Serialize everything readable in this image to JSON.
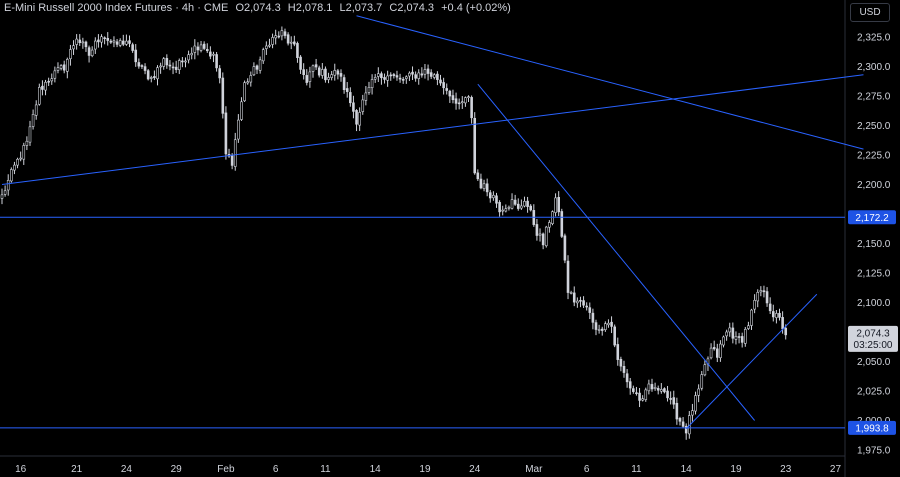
{
  "header": {
    "symbol": "E-Mini Russell 2000 Index Futures · 4h · CME",
    "open": "O2,074.3",
    "high": "H2,078.1",
    "low": "L2,073.7",
    "close": "C2,074.3",
    "change": "+0.4 (+0.02%)"
  },
  "currency_button": "USD",
  "colors": {
    "background": "#000000",
    "candle": "#d1d4dc",
    "trendline": "#2962ff",
    "level_label_bg": "#1e53e5",
    "price_label_bg": "#d1d4dc"
  },
  "chart_data": {
    "type": "candlestick",
    "ylim": [
      1968,
      2343
    ],
    "y_ticks": [
      "2,325.0",
      "2,300.0",
      "2,275.0",
      "2,250.0",
      "2,225.0",
      "2,200.0",
      "2,175.0",
      "2,150.0",
      "2,125.0",
      "2,100.0",
      "2,075.0",
      "2,050.0",
      "2,025.0",
      "2,000.0",
      "1,975.0"
    ],
    "x_ticks": [
      "16",
      "21",
      "24",
      "29",
      "Feb",
      "6",
      "11",
      "14",
      "19",
      "24",
      "Mar",
      "6",
      "11",
      "14",
      "19",
      "23",
      "27"
    ],
    "x_tick_index": [
      6,
      24,
      40,
      56,
      72,
      88,
      104,
      120,
      136,
      152,
      171,
      188,
      204,
      220,
      236,
      252,
      268
    ],
    "anchors": [
      [
        0,
        2190
      ],
      [
        4,
        2215
      ],
      [
        8,
        2235
      ],
      [
        12,
        2280
      ],
      [
        16,
        2292
      ],
      [
        20,
        2300
      ],
      [
        24,
        2325
      ],
      [
        28,
        2310
      ],
      [
        32,
        2328
      ],
      [
        36,
        2318
      ],
      [
        40,
        2322
      ],
      [
        44,
        2300
      ],
      [
        48,
        2290
      ],
      [
        52,
        2305
      ],
      [
        56,
        2298
      ],
      [
        60,
        2312
      ],
      [
        64,
        2320
      ],
      [
        68,
        2308
      ],
      [
        70,
        2290
      ],
      [
        72,
        2225
      ],
      [
        74,
        2220
      ],
      [
        76,
        2255
      ],
      [
        78,
        2285
      ],
      [
        82,
        2300
      ],
      [
        86,
        2322
      ],
      [
        90,
        2328
      ],
      [
        94,
        2315
      ],
      [
        98,
        2285
      ],
      [
        100,
        2300
      ],
      [
        104,
        2292
      ],
      [
        108,
        2295
      ],
      [
        112,
        2270
      ],
      [
        114,
        2255
      ],
      [
        116,
        2270
      ],
      [
        120,
        2290
      ],
      [
        124,
        2294
      ],
      [
        128,
        2288
      ],
      [
        132,
        2292
      ],
      [
        136,
        2296
      ],
      [
        140,
        2290
      ],
      [
        144,
        2278
      ],
      [
        146,
        2265
      ],
      [
        148,
        2270
      ],
      [
        150,
        2272
      ],
      [
        151,
        2258
      ],
      [
        152,
        2210
      ],
      [
        154,
        2200
      ],
      [
        158,
        2190
      ],
      [
        160,
        2180
      ],
      [
        164,
        2185
      ],
      [
        166,
        2178
      ],
      [
        168,
        2188
      ],
      [
        170,
        2175
      ],
      [
        172,
        2160
      ],
      [
        174,
        2150
      ],
      [
        176,
        2170
      ],
      [
        178,
        2188
      ],
      [
        180,
        2158
      ],
      [
        182,
        2110
      ],
      [
        184,
        2102
      ],
      [
        186,
        2100
      ],
      [
        188,
        2095
      ],
      [
        190,
        2085
      ],
      [
        192,
        2075
      ],
      [
        194,
        2085
      ],
      [
        196,
        2080
      ],
      [
        198,
        2050
      ],
      [
        200,
        2040
      ],
      [
        202,
        2028
      ],
      [
        204,
        2022
      ],
      [
        206,
        2015
      ],
      [
        208,
        2030
      ],
      [
        210,
        2025
      ],
      [
        212,
        2030
      ],
      [
        214,
        2020
      ],
      [
        216,
        2010
      ],
      [
        218,
        2000
      ],
      [
        220,
        1992
      ],
      [
        222,
        2010
      ],
      [
        224,
        2025
      ],
      [
        226,
        2045
      ],
      [
        228,
        2060
      ],
      [
        230,
        2055
      ],
      [
        232,
        2070
      ],
      [
        234,
        2078
      ],
      [
        236,
        2068
      ],
      [
        238,
        2070
      ],
      [
        240,
        2082
      ],
      [
        242,
        2100
      ],
      [
        244,
        2110
      ],
      [
        246,
        2102
      ],
      [
        248,
        2090
      ],
      [
        250,
        2085
      ],
      [
        252,
        2074
      ]
    ],
    "horizontal_levels": [
      {
        "value": 2172.2,
        "label": "2,172.2"
      },
      {
        "value": 1993.8,
        "label": "1,993.8"
      }
    ],
    "trendlines": [
      {
        "from": [
          0,
          2200
        ],
        "to": [
          277,
          2293
        ]
      },
      {
        "from": [
          114,
          2343
        ],
        "to": [
          277,
          2230
        ]
      },
      {
        "from": [
          153,
          2285
        ],
        "to": [
          242,
          2000
        ]
      },
      {
        "from": [
          220,
          1993
        ],
        "to": [
          262,
          2107
        ]
      }
    ],
    "last_price": {
      "value": 2074.3,
      "label": "2,074.3",
      "countdown": "03:25:00"
    },
    "grid": false,
    "candle_count": 253
  }
}
